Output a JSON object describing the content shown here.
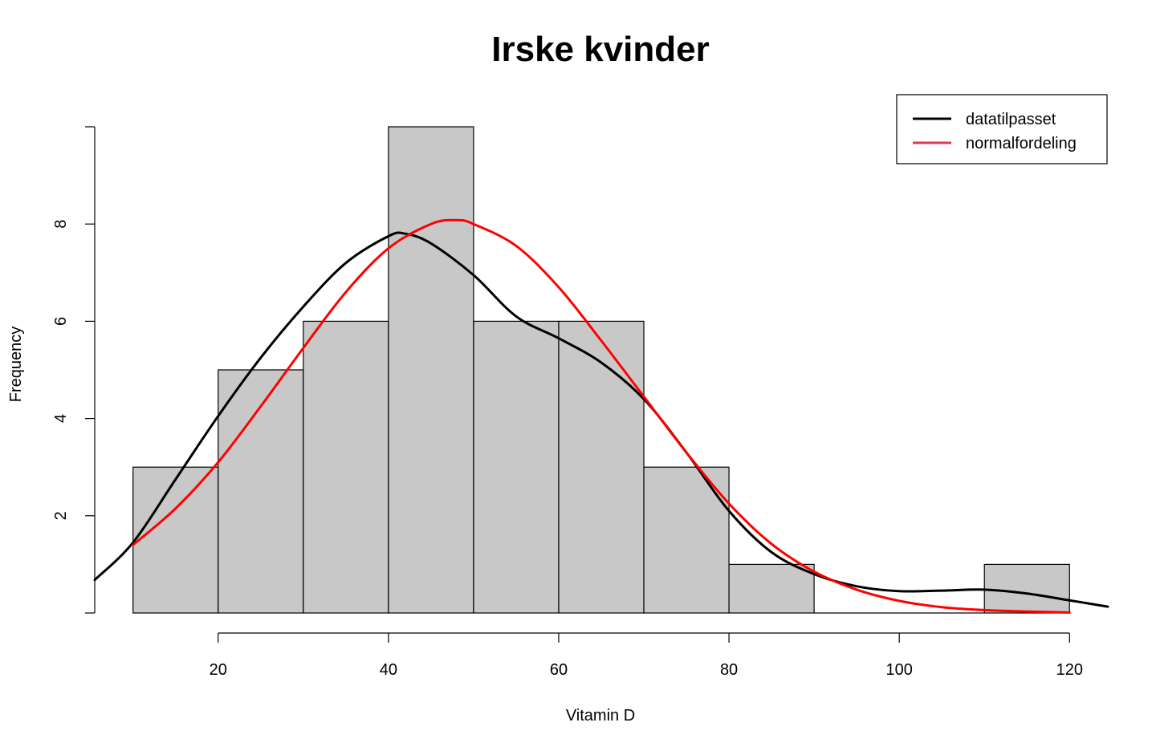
{
  "chart_data": {
    "type": "bar",
    "title": "Irske kvinder",
    "xlabel": "Vitamin D",
    "ylabel": "Frequency",
    "xlim": [
      5.5,
      124.5
    ],
    "ylim": [
      0,
      10
    ],
    "x_ticks": [
      20,
      40,
      60,
      80,
      100,
      120
    ],
    "y_ticks": [
      2,
      4,
      6,
      8
    ],
    "bins": [
      {
        "from": 10,
        "to": 20,
        "count": 3
      },
      {
        "from": 20,
        "to": 30,
        "count": 5
      },
      {
        "from": 30,
        "to": 40,
        "count": 6
      },
      {
        "from": 40,
        "to": 50,
        "count": 10
      },
      {
        "from": 50,
        "to": 60,
        "count": 6
      },
      {
        "from": 60,
        "to": 70,
        "count": 6
      },
      {
        "from": 70,
        "to": 80,
        "count": 3
      },
      {
        "from": 80,
        "to": 90,
        "count": 1
      },
      {
        "from": 90,
        "to": 100,
        "count": 0
      },
      {
        "from": 100,
        "to": 110,
        "count": 0
      },
      {
        "from": 110,
        "to": 120,
        "count": 1
      }
    ],
    "bar_color": "#c8c8c8",
    "grid": false,
    "legend_position": "top-right",
    "series": [
      {
        "name": "datatilpasset",
        "type": "line",
        "color": "#000000",
        "x": [
          5.5,
          10,
          15,
          20,
          25,
          30,
          35,
          40,
          42,
          45,
          50,
          55,
          60,
          65,
          70,
          75,
          80,
          85,
          90,
          95,
          100,
          105,
          110,
          115,
          120,
          124.5
        ],
        "y": [
          0.68,
          1.45,
          2.75,
          4.05,
          5.25,
          6.3,
          7.2,
          7.75,
          7.8,
          7.6,
          6.95,
          6.1,
          5.65,
          5.15,
          4.4,
          3.3,
          2.1,
          1.25,
          0.8,
          0.55,
          0.45,
          0.46,
          0.48,
          0.4,
          0.26,
          0.13
        ]
      },
      {
        "name": "normalfordeling",
        "type": "line",
        "color": "#ff0000",
        "x": [
          10,
          15,
          20,
          25,
          30,
          35,
          40,
          45,
          48,
          50,
          55,
          60,
          65,
          70,
          75,
          80,
          85,
          90,
          95,
          100,
          105,
          110,
          115,
          120
        ],
        "y": [
          1.4,
          2.15,
          3.1,
          4.25,
          5.45,
          6.6,
          7.5,
          8.0,
          8.08,
          8.0,
          7.55,
          6.7,
          5.6,
          4.45,
          3.3,
          2.25,
          1.42,
          0.85,
          0.48,
          0.25,
          0.12,
          0.06,
          0.03,
          0.01
        ]
      }
    ]
  }
}
